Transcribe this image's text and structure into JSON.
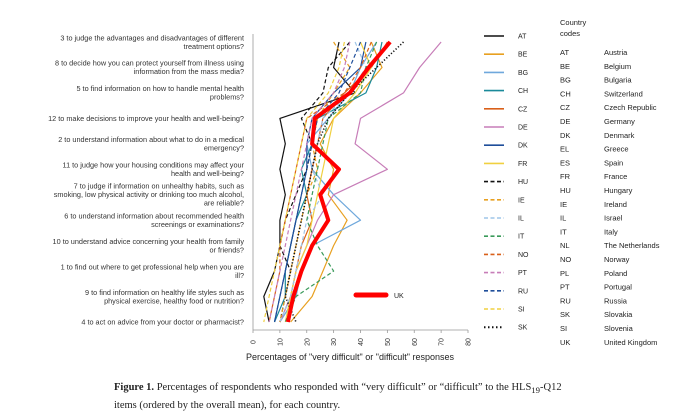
{
  "chart_data": {
    "type": "line",
    "xlabel": "Percentages of \"very difficult\" or \"difficult\" responses",
    "xlim": [
      0,
      80
    ],
    "xticks": [
      "0",
      "10",
      "20",
      "30",
      "40",
      "50",
      "60",
      "70",
      "80"
    ],
    "categories": [
      [
        "3 to judge the advantages and disadvantages of different",
        "treatment options?"
      ],
      [
        "8 to decide how you can protect yourself from illness using",
        "information from the mass media?"
      ],
      [
        "5 to find information on how to handle mental health",
        "problems?"
      ],
      [
        "12 to make decisions to improve your health and well-being?"
      ],
      [
        "2 to understand information about what to do in a medical",
        "emergency?"
      ],
      [
        "11 to judge how your housing conditions may affect your",
        "health and well-being?"
      ],
      [
        "7 to judge if information on unhealthy habits, such as",
        "smoking, low physical activity or drinking too much alcohol,",
        "are reliable?"
      ],
      [
        "6 to understand information about recommended health",
        "screenings or examinations?"
      ],
      [
        "10 to understand advice concerning your health from family",
        "or friends?"
      ],
      [
        "1 to find out where to get professional help when you are",
        "ill?"
      ],
      [
        "9 to find information on healthy life styles such as",
        "physical exercise, healthy food or nutrition?"
      ],
      [
        "4 to act on advice from your doctor or pharmacist?"
      ]
    ],
    "series": [
      {
        "name": "AT",
        "color": "#111111",
        "dash": "solid",
        "values": [
          32,
          30,
          38,
          10,
          12,
          10,
          12,
          10,
          10,
          8,
          4,
          6
        ]
      },
      {
        "name": "BE",
        "color": "#e8a020",
        "dash": "solid",
        "values": [
          44,
          48,
          40,
          30,
          25,
          30,
          28,
          35,
          30,
          26,
          22,
          14
        ]
      },
      {
        "name": "BG",
        "color": "#6fa8dc",
        "dash": "solid",
        "values": [
          46,
          40,
          36,
          28,
          20,
          22,
          30,
          40,
          22,
          18,
          16,
          10
        ]
      },
      {
        "name": "CH",
        "color": "#1a8a9a",
        "dash": "solid",
        "values": [
          48,
          46,
          42,
          24,
          22,
          18,
          20,
          16,
          14,
          12,
          12,
          8
        ]
      },
      {
        "name": "CZ",
        "color": "#d9601a",
        "dash": "solid",
        "values": [
          50,
          44,
          34,
          26,
          24,
          22,
          20,
          22,
          18,
          16,
          14,
          10
        ]
      },
      {
        "name": "DE",
        "color": "#c77db8",
        "dash": "solid",
        "values": [
          70,
          62,
          56,
          40,
          38,
          50,
          30,
          24,
          20,
          16,
          14,
          10
        ]
      },
      {
        "name": "DK",
        "color": "#1f4e9a",
        "dash": "solid",
        "values": [
          42,
          40,
          30,
          22,
          20,
          20,
          18,
          16,
          14,
          12,
          10,
          8
        ]
      },
      {
        "name": "FR",
        "color": "#f0d040",
        "dash": "solid",
        "values": [
          40,
          44,
          38,
          30,
          28,
          26,
          24,
          22,
          20,
          16,
          14,
          12
        ]
      },
      {
        "name": "HU",
        "color": "#111111",
        "dash": "dash",
        "values": [
          36,
          28,
          26,
          18,
          22,
          20,
          16,
          12,
          10,
          14,
          12,
          10
        ]
      },
      {
        "name": "IE",
        "color": "#e8a020",
        "dash": "dash",
        "values": [
          30,
          36,
          30,
          24,
          22,
          24,
          20,
          18,
          16,
          14,
          12,
          10
        ]
      },
      {
        "name": "IL",
        "color": "#9fc5e8",
        "dash": "dash",
        "values": [
          38,
          42,
          36,
          26,
          24,
          22,
          26,
          20,
          18,
          16,
          14,
          10
        ]
      },
      {
        "name": "IT",
        "color": "#3a9a5a",
        "dash": "dash",
        "values": [
          46,
          42,
          40,
          28,
          26,
          24,
          22,
          20,
          24,
          30,
          16,
          12
        ]
      },
      {
        "name": "NO",
        "color": "#d9601a",
        "dash": "dash",
        "values": [
          44,
          40,
          34,
          20,
          18,
          16,
          14,
          12,
          10,
          10,
          8,
          6
        ]
      },
      {
        "name": "PT",
        "color": "#c77db8",
        "dash": "dash",
        "values": [
          36,
          34,
          30,
          22,
          20,
          18,
          16,
          14,
          12,
          10,
          8,
          6
        ]
      },
      {
        "name": "RU",
        "color": "#1f4e9a",
        "dash": "dash",
        "values": [
          40,
          36,
          32,
          24,
          22,
          20,
          18,
          16,
          14,
          12,
          10,
          8
        ]
      },
      {
        "name": "SI",
        "color": "#f0d040",
        "dash": "dash",
        "values": [
          34,
          32,
          28,
          20,
          18,
          16,
          14,
          12,
          10,
          8,
          6,
          4
        ]
      },
      {
        "name": "SK",
        "color": "#111111",
        "dash": "dot",
        "values": [
          56,
          46,
          36,
          28,
          24,
          22,
          20,
          18,
          16,
          14,
          12,
          16
        ]
      },
      {
        "name": "UK",
        "color": "#ff0000",
        "dash": "bold",
        "values": [
          51,
          43,
          36,
          23,
          22,
          32,
          25,
          28,
          22,
          18,
          15,
          13
        ]
      }
    ],
    "inline_label": "UK"
  },
  "legend": {
    "codes_title": [
      "Country",
      "codes"
    ],
    "codes": [
      [
        "AT",
        "Austria"
      ],
      [
        "BE",
        "Belgium"
      ],
      [
        "BG",
        "Bulgaria"
      ],
      [
        "CH",
        "Switzerland"
      ],
      [
        "CZ",
        "Czech Republic"
      ],
      [
        "DE",
        "Germany"
      ],
      [
        "DK",
        "Denmark"
      ],
      [
        "EL",
        "Greece"
      ],
      [
        "ES",
        "Spain"
      ],
      [
        "FR",
        "France"
      ],
      [
        "HU",
        "Hungary"
      ],
      [
        "IE",
        "Ireland"
      ],
      [
        "IL",
        "Israel"
      ],
      [
        "IT",
        "Italy"
      ],
      [
        "NL",
        "The Netherlands"
      ],
      [
        "NO",
        "Norway"
      ],
      [
        "PL",
        "Poland"
      ],
      [
        "PT",
        "Portugal"
      ],
      [
        "RU",
        "Russia"
      ],
      [
        "SK",
        "Slovakia"
      ],
      [
        "SI",
        "Slovenia"
      ],
      [
        "UK",
        "United Kingdom"
      ]
    ]
  },
  "caption": {
    "label": "Figure 1.",
    "text_before": " Percentages of respondents who responded with “very difficult” or “difficult” to the HLS",
    "subscript": "19",
    "text_after": "-Q12 items (ordered by the overall mean), for each country."
  }
}
